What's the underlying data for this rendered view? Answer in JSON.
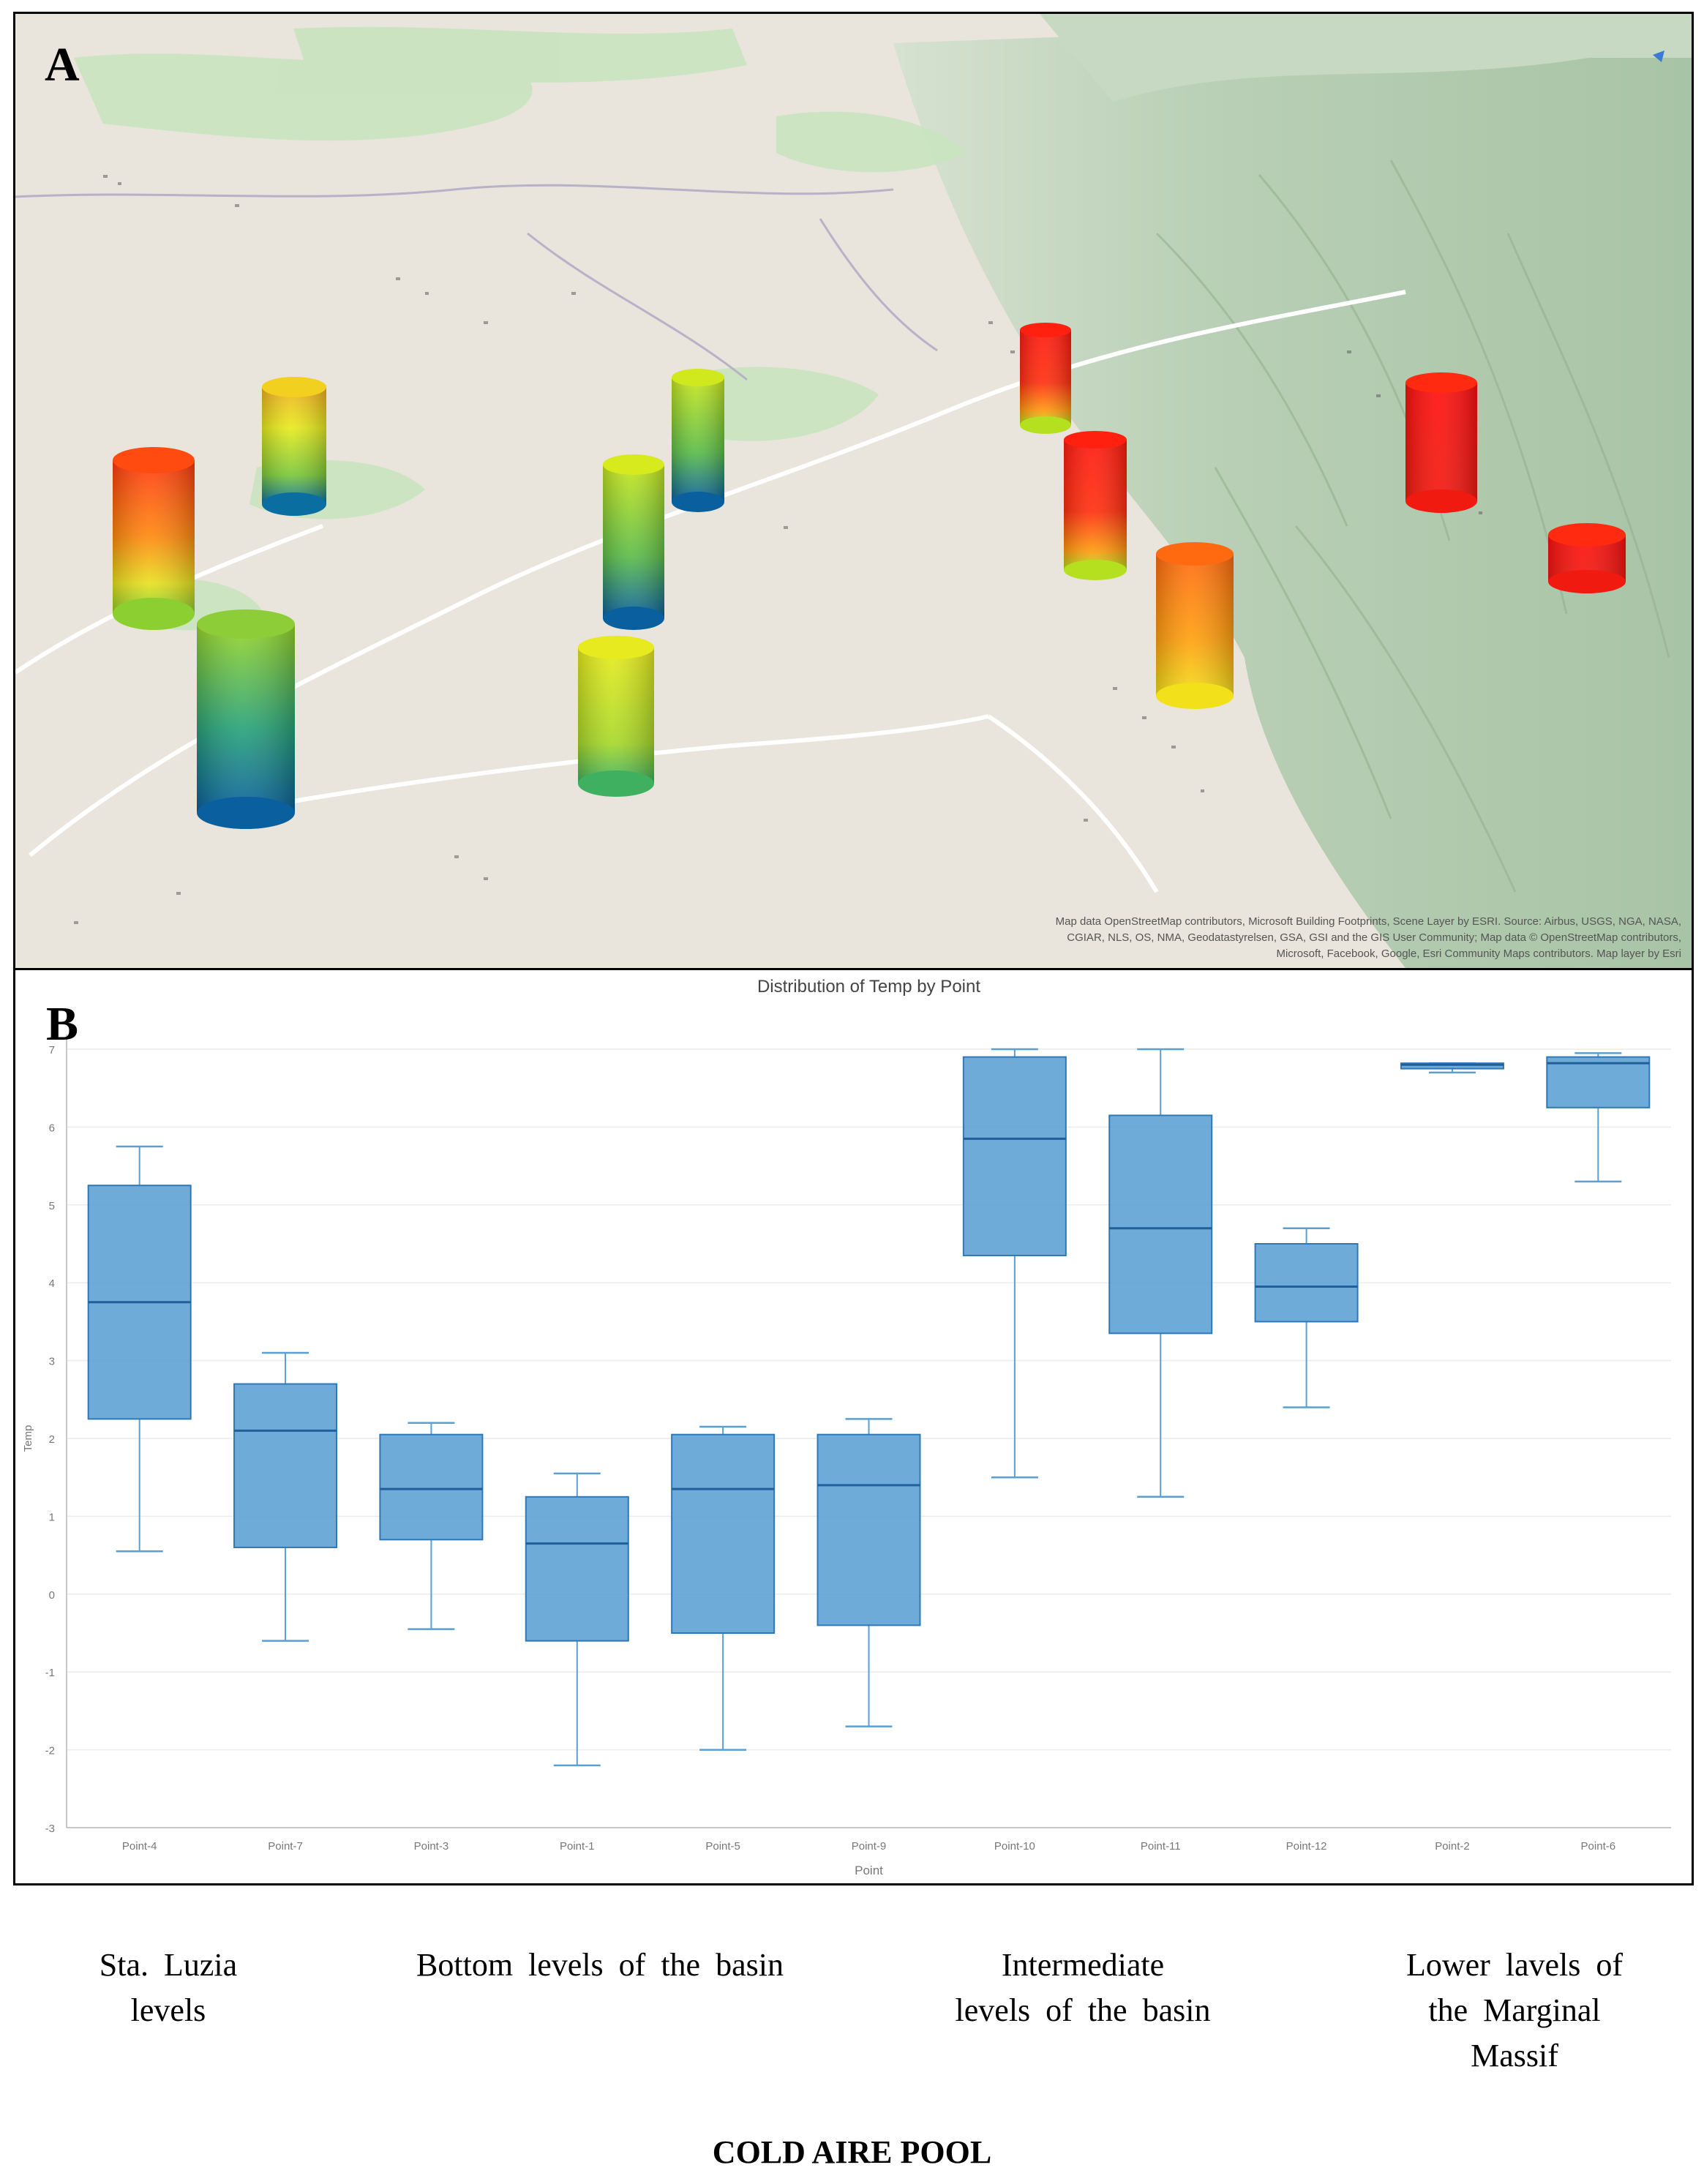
{
  "panel_a": {
    "label": "A",
    "attribution": "Map data OpenStreetMap contributors, Microsoft Building Footprints, Scene Layer by ESRI. Source: Airbus, USGS, NGA, NASA, CGIAR, NLS, OS, NMA, Geodatastyrelsen, GSA, GSI and the GIS User Community; Map data © OpenStreetMap contributors, Microsoft, Facebook, Google, Esri Community Maps contributors. Map layer by Esri",
    "colors": {
      "cold": "#0a5f9e",
      "cool": "#2aa37a",
      "mild": "#b8e020",
      "warm": "#f2e21a",
      "hot": "#ff7a00",
      "max": "#ff1010"
    }
  },
  "panel_b": {
    "label": "B"
  },
  "chart_data": {
    "type": "box",
    "title": "Distribution of Temp by Point",
    "xlabel": "Point",
    "ylabel": "Temp",
    "ylim": [
      -3,
      7
    ],
    "yticks": [
      7,
      6,
      5,
      4,
      3,
      2,
      1,
      0,
      -1,
      -2,
      -3
    ],
    "box_color": "#5a9fd4",
    "categories": [
      "Point-4",
      "Point-7",
      "Point-3",
      "Point-1",
      "Point-5",
      "Point-9",
      "Point-10",
      "Point-11",
      "Point-12",
      "Point-2",
      "Point-6"
    ],
    "series": [
      {
        "name": "Point-4",
        "min": 0.55,
        "q1": 2.25,
        "median": 3.75,
        "q3": 5.25,
        "max": 5.75
      },
      {
        "name": "Point-7",
        "min": -0.6,
        "q1": 0.6,
        "median": 2.1,
        "q3": 2.7,
        "max": 3.1
      },
      {
        "name": "Point-3",
        "min": -0.45,
        "q1": 0.7,
        "median": 1.35,
        "q3": 2.05,
        "max": 2.2
      },
      {
        "name": "Point-1",
        "min": -2.2,
        "q1": -0.6,
        "median": 0.65,
        "q3": 1.25,
        "max": 1.55
      },
      {
        "name": "Point-5",
        "min": -2.0,
        "q1": -0.5,
        "median": 1.35,
        "q3": 2.05,
        "max": 2.15
      },
      {
        "name": "Point-9",
        "min": -1.7,
        "q1": -0.4,
        "median": 1.4,
        "q3": 2.05,
        "max": 2.25
      },
      {
        "name": "Point-10",
        "min": 1.5,
        "q1": 4.35,
        "median": 5.85,
        "q3": 6.9,
        "max": 7.0
      },
      {
        "name": "Point-11",
        "min": 1.25,
        "q1": 3.35,
        "median": 4.7,
        "q3": 6.15,
        "max": 7.0
      },
      {
        "name": "Point-12",
        "min": 2.4,
        "q1": 3.5,
        "median": 3.95,
        "q3": 4.5,
        "max": 4.7
      },
      {
        "name": "Point-2",
        "min": 6.7,
        "q1": 6.75,
        "median": 6.8,
        "q3": 6.82,
        "max": 6.82
      },
      {
        "name": "Point-6",
        "min": 5.3,
        "q1": 6.25,
        "median": 6.82,
        "q3": 6.9,
        "max": 6.95
      }
    ]
  },
  "annotations": {
    "sta_luzia": [
      "Sta. Luzia",
      "levels"
    ],
    "bottom": [
      "Bottom  levels  of the  basin"
    ],
    "intermediate": [
      "Intermediate",
      "levels  of the basin"
    ],
    "lower": [
      "Lower lavels  of",
      "the Marginal",
      "Massif"
    ]
  },
  "footer": "COLD AIRE POOL"
}
